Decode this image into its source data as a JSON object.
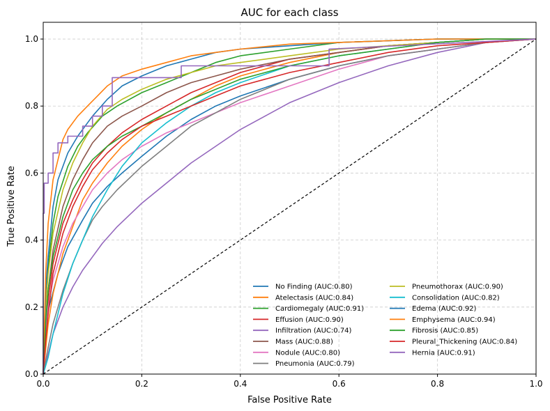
{
  "chart_data": {
    "type": "line",
    "title": "AUC for each class",
    "xlabel": "False Positive Rate",
    "ylabel": "True Positive Rate",
    "xlim": [
      0.0,
      1.0
    ],
    "ylim": [
      0.0,
      1.05
    ],
    "xticks": [
      "0.0",
      "0.2",
      "0.4",
      "0.6",
      "0.8",
      "1.0"
    ],
    "yticks": [
      "0.0",
      "0.2",
      "0.4",
      "0.6",
      "0.8",
      "1.0"
    ],
    "grid": true,
    "legend_position": "lower-right",
    "reference_line": {
      "x": [
        0,
        1
      ],
      "y": [
        0,
        1
      ],
      "style": "dashed",
      "color": "#000000"
    },
    "series": [
      {
        "name": "No Finding (AUC:0.80)",
        "color": "#1f77b4",
        "x": [
          0,
          0.01,
          0.03,
          0.05,
          0.08,
          0.1,
          0.13,
          0.16,
          0.2,
          0.25,
          0.3,
          0.35,
          0.4,
          0.5,
          0.6,
          0.7,
          0.8,
          0.9,
          1.0
        ],
        "y": [
          0,
          0.19,
          0.3,
          0.38,
          0.46,
          0.51,
          0.56,
          0.6,
          0.65,
          0.71,
          0.76,
          0.8,
          0.83,
          0.88,
          0.92,
          0.95,
          0.97,
          0.99,
          1.0
        ]
      },
      {
        "name": "Atelectasis (AUC:0.84)",
        "color": "#ff7f0e",
        "x": [
          0,
          0.01,
          0.02,
          0.04,
          0.06,
          0.08,
          0.1,
          0.13,
          0.16,
          0.2,
          0.25,
          0.3,
          0.35,
          0.4,
          0.5,
          0.6,
          0.7,
          0.8,
          0.9,
          1.0
        ],
        "y": [
          0,
          0.15,
          0.24,
          0.36,
          0.44,
          0.52,
          0.57,
          0.63,
          0.68,
          0.73,
          0.78,
          0.82,
          0.86,
          0.89,
          0.93,
          0.96,
          0.98,
          0.99,
          1.0,
          1.0
        ]
      },
      {
        "name": "Cardiomegaly (AUC:0.91)",
        "color": "#2ca02c",
        "x": [
          0,
          0.005,
          0.01,
          0.02,
          0.03,
          0.05,
          0.07,
          0.09,
          0.12,
          0.15,
          0.2,
          0.25,
          0.3,
          0.35,
          0.4,
          0.5,
          0.6,
          0.7,
          0.8,
          1.0
        ],
        "y": [
          0,
          0.2,
          0.32,
          0.45,
          0.53,
          0.62,
          0.68,
          0.72,
          0.77,
          0.8,
          0.84,
          0.87,
          0.9,
          0.93,
          0.95,
          0.97,
          0.99,
          0.995,
          1.0,
          1.0
        ]
      },
      {
        "name": "Effusion (AUC:0.90)",
        "color": "#d62728",
        "x": [
          0,
          0.005,
          0.01,
          0.02,
          0.04,
          0.06,
          0.08,
          0.1,
          0.13,
          0.16,
          0.2,
          0.25,
          0.3,
          0.35,
          0.4,
          0.5,
          0.6,
          0.7,
          0.8,
          0.9,
          1.0
        ],
        "y": [
          0,
          0.12,
          0.22,
          0.33,
          0.45,
          0.52,
          0.58,
          0.63,
          0.68,
          0.72,
          0.76,
          0.8,
          0.84,
          0.87,
          0.9,
          0.94,
          0.96,
          0.98,
          0.99,
          1.0,
          1.0
        ]
      },
      {
        "name": "Infiltration (AUC:0.74)",
        "color": "#9467bd",
        "x": [
          0,
          0.01,
          0.02,
          0.04,
          0.06,
          0.08,
          0.1,
          0.12,
          0.15,
          0.2,
          0.25,
          0.3,
          0.35,
          0.4,
          0.45,
          0.5,
          0.6,
          0.7,
          0.8,
          0.9,
          1.0
        ],
        "y": [
          0,
          0.06,
          0.12,
          0.2,
          0.26,
          0.31,
          0.35,
          0.39,
          0.44,
          0.51,
          0.57,
          0.63,
          0.68,
          0.73,
          0.77,
          0.81,
          0.87,
          0.92,
          0.96,
          0.99,
          1.0
        ]
      },
      {
        "name": "Mass (AUC:0.88)",
        "color": "#8c564b",
        "x": [
          0,
          0.005,
          0.01,
          0.02,
          0.04,
          0.06,
          0.08,
          0.1,
          0.13,
          0.16,
          0.2,
          0.25,
          0.3,
          0.35,
          0.4,
          0.5,
          0.6,
          0.7,
          0.8,
          0.9,
          1.0
        ],
        "y": [
          0,
          0.15,
          0.25,
          0.37,
          0.5,
          0.58,
          0.64,
          0.69,
          0.74,
          0.77,
          0.8,
          0.84,
          0.87,
          0.89,
          0.91,
          0.94,
          0.96,
          0.98,
          0.99,
          1.0,
          1.0
        ]
      },
      {
        "name": "Nodule (AUC:0.80)",
        "color": "#e377c2",
        "x": [
          0,
          0.005,
          0.01,
          0.02,
          0.04,
          0.06,
          0.08,
          0.1,
          0.13,
          0.16,
          0.2,
          0.25,
          0.3,
          0.35,
          0.4,
          0.5,
          0.6,
          0.7,
          0.8,
          0.9,
          1.0
        ],
        "y": [
          0,
          0.12,
          0.2,
          0.28,
          0.38,
          0.45,
          0.5,
          0.55,
          0.6,
          0.64,
          0.68,
          0.72,
          0.75,
          0.78,
          0.81,
          0.86,
          0.91,
          0.95,
          0.97,
          0.99,
          1.0
        ]
      },
      {
        "name": "Pneumonia (AUC:0.79)",
        "color": "#7f7f7f",
        "x": [
          0,
          0.01,
          0.02,
          0.04,
          0.06,
          0.08,
          0.1,
          0.12,
          0.15,
          0.2,
          0.25,
          0.3,
          0.35,
          0.4,
          0.45,
          0.5,
          0.6,
          0.7,
          0.8,
          0.9,
          1.0
        ],
        "y": [
          0,
          0.08,
          0.15,
          0.25,
          0.33,
          0.4,
          0.46,
          0.5,
          0.55,
          0.62,
          0.68,
          0.74,
          0.78,
          0.82,
          0.85,
          0.88,
          0.92,
          0.95,
          0.97,
          0.99,
          1.0
        ]
      },
      {
        "name": "Pneumothorax (AUC:0.90)",
        "color": "#bcbd22",
        "x": [
          0,
          0.005,
          0.01,
          0.02,
          0.04,
          0.06,
          0.08,
          0.1,
          0.13,
          0.16,
          0.2,
          0.25,
          0.3,
          0.35,
          0.4,
          0.5,
          0.6,
          0.7,
          0.8,
          0.9,
          1.0
        ],
        "y": [
          0,
          0.2,
          0.3,
          0.42,
          0.55,
          0.63,
          0.69,
          0.74,
          0.79,
          0.82,
          0.85,
          0.88,
          0.9,
          0.92,
          0.93,
          0.95,
          0.97,
          0.98,
          0.99,
          1.0,
          1.0
        ]
      },
      {
        "name": "Consolidation (AUC:0.82)",
        "color": "#17becf",
        "x": [
          0,
          0.01,
          0.02,
          0.04,
          0.06,
          0.08,
          0.1,
          0.13,
          0.16,
          0.2,
          0.25,
          0.3,
          0.35,
          0.4,
          0.5,
          0.6,
          0.7,
          0.8,
          0.9,
          1.0
        ],
        "y": [
          0,
          0.05,
          0.12,
          0.24,
          0.33,
          0.4,
          0.47,
          0.55,
          0.62,
          0.69,
          0.75,
          0.8,
          0.84,
          0.87,
          0.92,
          0.95,
          0.97,
          0.99,
          1.0,
          1.0
        ]
      },
      {
        "name": "Edema (AUC:0.92)",
        "color": "#1f77b4",
        "x": [
          0,
          0.005,
          0.01,
          0.02,
          0.03,
          0.05,
          0.07,
          0.1,
          0.13,
          0.16,
          0.2,
          0.25,
          0.3,
          0.35,
          0.4,
          0.5,
          0.6,
          0.7,
          0.8,
          1.0
        ],
        "y": [
          0,
          0.25,
          0.35,
          0.5,
          0.58,
          0.66,
          0.71,
          0.77,
          0.82,
          0.86,
          0.89,
          0.92,
          0.94,
          0.96,
          0.97,
          0.98,
          0.99,
          0.995,
          1.0,
          1.0
        ]
      },
      {
        "name": "Emphysema (AUC:0.94)",
        "color": "#ff7f0e",
        "x": [
          0,
          0.005,
          0.01,
          0.02,
          0.03,
          0.04,
          0.05,
          0.07,
          0.09,
          0.11,
          0.13,
          0.16,
          0.2,
          0.25,
          0.3,
          0.4,
          0.5,
          0.6,
          0.7,
          0.8,
          1.0
        ],
        "y": [
          0,
          0.3,
          0.45,
          0.58,
          0.64,
          0.7,
          0.73,
          0.77,
          0.8,
          0.83,
          0.86,
          0.89,
          0.91,
          0.93,
          0.95,
          0.97,
          0.985,
          0.99,
          0.995,
          1.0,
          1.0
        ]
      },
      {
        "name": "Fibrosis (AUC:0.85)",
        "color": "#2ca02c",
        "x": [
          0,
          0.005,
          0.01,
          0.02,
          0.04,
          0.06,
          0.08,
          0.1,
          0.13,
          0.16,
          0.2,
          0.25,
          0.3,
          0.35,
          0.4,
          0.5,
          0.6,
          0.7,
          0.8,
          0.9,
          1.0
        ],
        "y": [
          0,
          0.15,
          0.25,
          0.35,
          0.47,
          0.55,
          0.6,
          0.64,
          0.68,
          0.71,
          0.74,
          0.78,
          0.82,
          0.85,
          0.88,
          0.92,
          0.95,
          0.97,
          0.99,
          1.0,
          1.0
        ]
      },
      {
        "name": "Pleural_Thickening (AUC:0.84)",
        "color": "#d62728",
        "x": [
          0,
          0.005,
          0.01,
          0.02,
          0.04,
          0.06,
          0.08,
          0.1,
          0.13,
          0.16,
          0.2,
          0.25,
          0.3,
          0.35,
          0.4,
          0.5,
          0.6,
          0.7,
          0.8,
          0.9,
          1.0
        ],
        "y": [
          0,
          0.1,
          0.18,
          0.3,
          0.42,
          0.5,
          0.56,
          0.61,
          0.66,
          0.7,
          0.74,
          0.77,
          0.8,
          0.83,
          0.86,
          0.9,
          0.93,
          0.96,
          0.98,
          0.99,
          1.0
        ]
      },
      {
        "name": "Hernia (AUC:0.91)",
        "color": "#9467bd",
        "step": true,
        "x": [
          0,
          0,
          0.002,
          0.002,
          0.01,
          0.01,
          0.02,
          0.02,
          0.03,
          0.03,
          0.05,
          0.05,
          0.08,
          0.08,
          0.1,
          0.1,
          0.12,
          0.12,
          0.14,
          0.14,
          0.28,
          0.28,
          0.58,
          0.58,
          1.0
        ],
        "y": [
          0,
          0.48,
          0.48,
          0.57,
          0.57,
          0.6,
          0.6,
          0.66,
          0.66,
          0.69,
          0.69,
          0.71,
          0.71,
          0.74,
          0.74,
          0.77,
          0.77,
          0.8,
          0.8,
          0.885,
          0.885,
          0.92,
          0.92,
          0.97,
          1.0
        ]
      }
    ]
  }
}
